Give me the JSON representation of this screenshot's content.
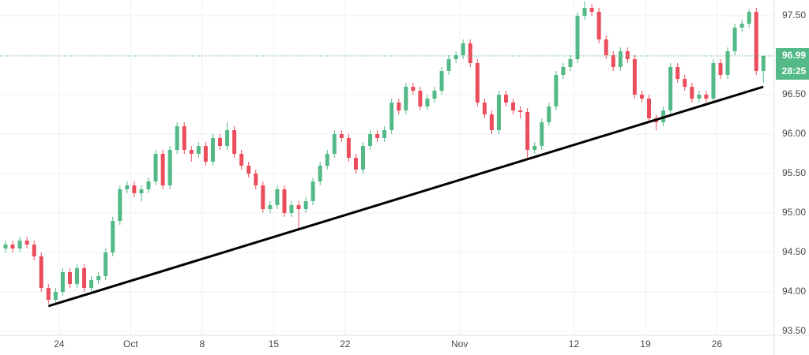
{
  "chart_data": {
    "type": "candlestick",
    "up_color": "#53b987",
    "down_color": "#eb4d5c",
    "grid": true,
    "ylim": [
      93.45,
      97.7
    ],
    "yticks": [
      {
        "value": 93.5,
        "label": "93.50"
      },
      {
        "value": 94,
        "label": "94.00"
      },
      {
        "value": 94.5,
        "label": "94.50"
      },
      {
        "value": 95,
        "label": "95.00"
      },
      {
        "value": 95.5,
        "label": "95.50"
      },
      {
        "value": 96,
        "label": "96.00"
      },
      {
        "value": 96.5,
        "label": "96.50"
      },
      {
        "value": 97,
        "label": "97.00"
      },
      {
        "value": 97.5,
        "label": "97.50"
      }
    ],
    "categories": [
      null,
      null,
      null,
      null,
      null,
      null,
      null,
      null,
      "24",
      null,
      null,
      null,
      null,
      null,
      null,
      null,
      null,
      null,
      "Oct",
      null,
      null,
      null,
      null,
      null,
      null,
      null,
      null,
      null,
      "8",
      null,
      null,
      null,
      null,
      null,
      null,
      null,
      null,
      null,
      "15",
      null,
      null,
      null,
      null,
      null,
      null,
      null,
      null,
      null,
      "22",
      null,
      null,
      null,
      null,
      null,
      null,
      null,
      null,
      null,
      null,
      null,
      null,
      null,
      null,
      null,
      "Nov",
      null,
      null,
      null,
      null,
      null,
      null,
      null,
      null,
      null,
      null,
      null,
      null,
      null,
      null,
      null,
      "12",
      null,
      null,
      null,
      null,
      null,
      null,
      null,
      null,
      null,
      "19",
      null,
      null,
      null,
      null,
      null,
      null,
      null,
      null,
      null,
      "26",
      null,
      null,
      null,
      null,
      null,
      null
    ],
    "open": [
      94.55,
      94.6,
      94.55,
      94.65,
      94.6,
      94.45,
      94.05,
      93.9,
      94.0,
      94.25,
      94.1,
      94.3,
      94.05,
      94.15,
      94.2,
      94.5,
      94.9,
      95.3,
      95.35,
      95.25,
      95.3,
      95.4,
      95.75,
      95.35,
      95.8,
      96.1,
      95.8,
      95.75,
      95.85,
      95.65,
      95.95,
      95.85,
      96.05,
      95.75,
      95.6,
      95.5,
      95.35,
      95.05,
      95.1,
      95.3,
      95.0,
      95.1,
      95.05,
      95.15,
      95.4,
      95.6,
      95.75,
      96.0,
      95.95,
      95.7,
      95.55,
      95.85,
      96.0,
      95.95,
      96.05,
      96.4,
      96.3,
      96.6,
      96.55,
      96.35,
      96.45,
      96.55,
      96.8,
      96.95,
      97.0,
      97.15,
      96.9,
      96.4,
      96.25,
      96.05,
      96.5,
      96.4,
      96.3,
      96.28,
      95.8,
      95.85,
      96.15,
      96.35,
      96.75,
      96.85,
      96.95,
      97.5,
      97.6,
      97.55,
      97.2,
      97.0,
      96.85,
      97.05,
      96.95,
      96.5,
      96.45,
      96.2,
      96.15,
      96.3,
      96.85,
      96.7,
      96.6,
      96.45,
      96.5,
      96.45,
      96.9,
      96.75,
      97.05,
      97.35,
      97.4,
      97.55,
      96.8
    ],
    "high": [
      94.65,
      94.65,
      94.7,
      94.7,
      94.65,
      94.5,
      94.1,
      94.05,
      94.3,
      94.3,
      94.35,
      94.35,
      94.2,
      94.25,
      94.55,
      94.95,
      95.35,
      95.4,
      95.4,
      95.35,
      95.45,
      95.8,
      95.8,
      95.85,
      96.15,
      96.15,
      95.85,
      95.9,
      95.9,
      96.0,
      96.0,
      96.15,
      96.1,
      95.8,
      95.65,
      95.55,
      95.4,
      95.15,
      95.35,
      95.35,
      95.15,
      95.15,
      95.2,
      95.45,
      95.65,
      95.8,
      96.05,
      96.05,
      96.0,
      95.75,
      95.9,
      96.05,
      96.05,
      96.1,
      96.45,
      96.45,
      96.65,
      96.65,
      96.6,
      96.5,
      96.6,
      96.85,
      97.0,
      97.05,
      97.2,
      97.2,
      96.95,
      96.45,
      96.3,
      96.55,
      96.55,
      96.45,
      96.35,
      96.33,
      95.9,
      96.2,
      96.4,
      96.8,
      96.9,
      97.0,
      97.55,
      97.68,
      97.65,
      97.6,
      97.25,
      97.05,
      97.1,
      97.1,
      97.0,
      96.55,
      96.5,
      96.25,
      96.35,
      96.9,
      96.9,
      96.75,
      96.65,
      96.55,
      96.55,
      96.95,
      96.95,
      97.1,
      97.4,
      97.45,
      97.58,
      97.6,
      97.0
    ],
    "low": [
      94.5,
      94.5,
      94.5,
      94.55,
      94.4,
      94.0,
      93.85,
      93.85,
      93.95,
      94.05,
      94.05,
      94.0,
      94.0,
      94.1,
      94.15,
      94.45,
      94.85,
      95.25,
      95.2,
      95.15,
      95.25,
      95.35,
      95.3,
      95.3,
      95.75,
      95.75,
      95.65,
      95.7,
      95.6,
      95.6,
      95.8,
      95.8,
      95.7,
      95.55,
      95.45,
      95.3,
      95.0,
      95.0,
      95.05,
      94.95,
      94.95,
      94.8,
      95.0,
      95.1,
      95.35,
      95.55,
      95.7,
      95.9,
      95.65,
      95.5,
      95.5,
      95.8,
      95.9,
      95.9,
      96.0,
      96.25,
      96.25,
      96.5,
      96.3,
      96.3,
      96.4,
      96.5,
      96.75,
      96.9,
      96.95,
      96.85,
      96.35,
      96.2,
      96.0,
      96.0,
      96.35,
      96.25,
      96.2,
      95.7,
      95.75,
      95.8,
      96.1,
      96.3,
      96.7,
      96.8,
      96.9,
      97.45,
      97.5,
      97.15,
      96.95,
      96.8,
      96.8,
      96.9,
      96.45,
      96.4,
      96.15,
      96.05,
      96.1,
      96.25,
      96.65,
      96.55,
      96.4,
      96.4,
      96.4,
      96.4,
      96.7,
      96.7,
      97.0,
      97.3,
      97.35,
      96.75,
      96.65
    ],
    "close": [
      94.6,
      94.55,
      94.65,
      94.6,
      94.45,
      94.05,
      93.9,
      94.0,
      94.25,
      94.1,
      94.3,
      94.05,
      94.15,
      94.2,
      94.5,
      94.9,
      95.3,
      95.35,
      95.25,
      95.3,
      95.4,
      95.75,
      95.35,
      95.8,
      96.1,
      95.8,
      95.75,
      95.85,
      95.65,
      95.95,
      95.85,
      96.05,
      95.75,
      95.6,
      95.5,
      95.35,
      95.05,
      95.1,
      95.3,
      95.0,
      95.1,
      95.05,
      95.15,
      95.4,
      95.6,
      95.75,
      96.0,
      95.95,
      95.7,
      95.55,
      95.85,
      96.0,
      95.95,
      96.05,
      96.4,
      96.3,
      96.6,
      96.55,
      96.35,
      96.45,
      96.55,
      96.8,
      96.95,
      97.0,
      97.15,
      96.9,
      96.4,
      96.25,
      96.05,
      96.5,
      96.4,
      96.3,
      96.28,
      95.8,
      95.85,
      96.15,
      96.35,
      96.75,
      96.85,
      96.95,
      97.5,
      97.6,
      97.55,
      97.2,
      97.0,
      96.85,
      97.05,
      96.95,
      96.5,
      96.45,
      96.2,
      96.15,
      96.3,
      96.85,
      96.7,
      96.6,
      96.45,
      96.5,
      96.45,
      96.9,
      96.75,
      97.05,
      97.35,
      97.4,
      97.55,
      96.8,
      96.99
    ],
    "trendline": {
      "from": {
        "category": 6,
        "value": 93.82
      },
      "to": {
        "category": 106,
        "value": 96.6
      },
      "color": "#000000"
    },
    "countdown": "28:25"
  }
}
